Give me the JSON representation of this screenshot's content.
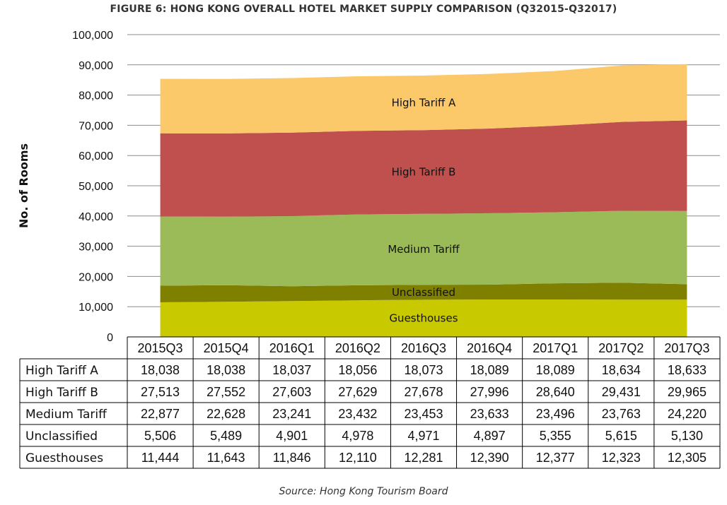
{
  "chart_data": {
    "type": "area",
    "stacked": true,
    "title": "FIGURE 6: HONG KONG OVERALL HOTEL MARKET SUPPLY COMPARISON (Q32015-Q32017)",
    "xlabel": "",
    "ylabel": "No. of Rooms",
    "ylim": [
      0,
      100000
    ],
    "yticks": [
      0,
      10000,
      20000,
      30000,
      40000,
      50000,
      60000,
      70000,
      80000,
      90000,
      100000
    ],
    "ytick_labels": [
      "0",
      "10,000",
      "20,000",
      "30,000",
      "40,000",
      "50,000",
      "60,000",
      "70,000",
      "80,000",
      "90,000",
      "100,000"
    ],
    "grid": true,
    "categories": [
      "2015Q3",
      "2015Q4",
      "2016Q1",
      "2016Q2",
      "2016Q3",
      "2016Q4",
      "2017Q1",
      "2017Q2",
      "2017Q3"
    ],
    "series": [
      {
        "name": "Guesthouses",
        "color": "#c9c900",
        "values": [
          11444,
          11643,
          11846,
          12110,
          12281,
          12390,
          12377,
          12323,
          12305
        ],
        "labels": [
          "11,444",
          "11,643",
          "11,846",
          "12,110",
          "12,281",
          "12,390",
          "12,377",
          "12,323",
          "12,305"
        ]
      },
      {
        "name": "Unclassified",
        "color": "#808000",
        "values": [
          5506,
          5489,
          4901,
          4978,
          4971,
          4897,
          5355,
          5615,
          5130
        ],
        "labels": [
          "5,506",
          "5,489",
          "4,901",
          "4,978",
          "4,971",
          "4,897",
          "5,355",
          "5,615",
          "5,130"
        ]
      },
      {
        "name": "Medium Tariff",
        "color": "#9bbb59",
        "values": [
          22877,
          22628,
          23241,
          23432,
          23453,
          23633,
          23496,
          23763,
          24220
        ],
        "labels": [
          "22,877",
          "22,628",
          "23,241",
          "23,432",
          "23,453",
          "23,633",
          "23,496",
          "23,763",
          "24,220"
        ]
      },
      {
        "name": "High Tariff B",
        "color": "#c0504d",
        "values": [
          27513,
          27552,
          27603,
          27629,
          27678,
          27996,
          28640,
          29431,
          29965
        ],
        "labels": [
          "27,513",
          "27,552",
          "27,603",
          "27,629",
          "27,678",
          "27,996",
          "28,640",
          "29,431",
          "29,965"
        ]
      },
      {
        "name": "High Tariff A",
        "color": "#fcc96a",
        "values": [
          18038,
          18038,
          18037,
          18056,
          18073,
          18089,
          18089,
          18634,
          18633
        ],
        "labels": [
          "18,038",
          "18,038",
          "18,037",
          "18,056",
          "18,073",
          "18,089",
          "18,089",
          "18,634",
          "18,633"
        ]
      }
    ],
    "table_rows": [
      "High Tariff A",
      "High Tariff B",
      "Medium Tariff",
      "Unclassified",
      "Guesthouses"
    ],
    "source": "Source: Hong Kong Tourism Board"
  }
}
